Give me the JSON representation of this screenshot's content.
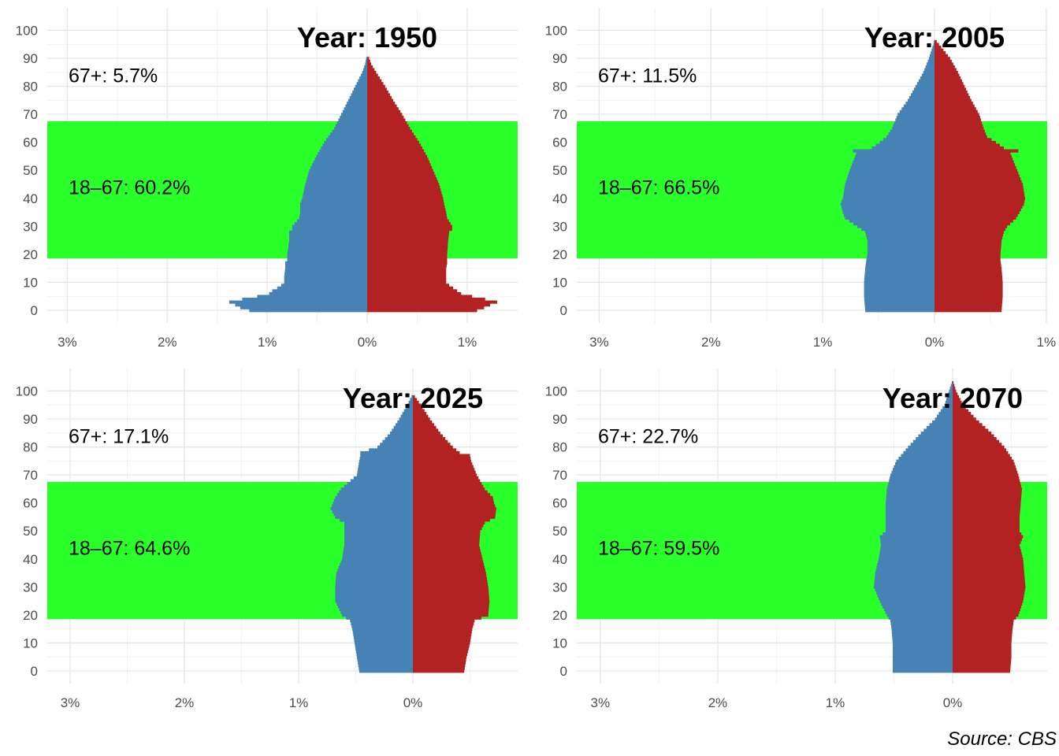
{
  "chart_data": [
    {
      "type": "bar",
      "title": "Year: 1950",
      "subtitle": "",
      "xlabel": "",
      "ylabel": "",
      "y_axis": {
        "ticks": [
          0,
          10,
          20,
          30,
          40,
          50,
          60,
          70,
          80,
          90,
          100
        ],
        "range": [
          -4.5,
          108
        ]
      },
      "x_axis": {
        "left_ticks": [
          3,
          2,
          1,
          0
        ],
        "right_ticks": [
          1
        ],
        "tick_labels": [
          "3%",
          "2%",
          "1%",
          "0%",
          "1%"
        ],
        "range_left": 3.2,
        "range_right": 1.5
      },
      "grid": true,
      "band": {
        "from": 18,
        "to": 67,
        "color": "#22ff22"
      },
      "annotations": [
        {
          "text": "67+: 5.7%",
          "age": 84
        },
        {
          "text": "18–67: 60.2%",
          "age": 44
        }
      ],
      "series": [
        {
          "color": "#4682b4",
          "side": "left",
          "ages": [
            0,
            1,
            2,
            3,
            4,
            5,
            6,
            7,
            8,
            9,
            10,
            12,
            15,
            17,
            18,
            20,
            25,
            28,
            29,
            30,
            33,
            35,
            38,
            40,
            45,
            50,
            55,
            60,
            65,
            70,
            75,
            80,
            85,
            88,
            90,
            91
          ],
          "values": [
            1.18,
            1.27,
            1.32,
            1.38,
            1.25,
            1.1,
            0.98,
            0.95,
            0.9,
            0.86,
            0.83,
            0.83,
            0.82,
            0.82,
            0.8,
            0.8,
            0.78,
            0.78,
            0.75,
            0.75,
            0.68,
            0.67,
            0.67,
            0.65,
            0.62,
            0.58,
            0.51,
            0.43,
            0.33,
            0.26,
            0.19,
            0.12,
            0.05,
            0.02,
            0.01,
            0.0
          ]
        },
        {
          "color": "#b22222",
          "side": "right",
          "ages": [
            0,
            1,
            2,
            3,
            4,
            5,
            6,
            7,
            8,
            9,
            10,
            12,
            15,
            17,
            18,
            20,
            25,
            28,
            29,
            30,
            33,
            35,
            38,
            40,
            45,
            50,
            55,
            60,
            65,
            70,
            75,
            80,
            85,
            88,
            90,
            91
          ],
          "values": [
            1.1,
            1.17,
            1.23,
            1.3,
            1.18,
            1.05,
            0.94,
            0.9,
            0.86,
            0.82,
            0.79,
            0.79,
            0.79,
            0.8,
            0.8,
            0.8,
            0.81,
            0.82,
            0.85,
            0.85,
            0.8,
            0.79,
            0.77,
            0.76,
            0.72,
            0.66,
            0.6,
            0.52,
            0.43,
            0.35,
            0.26,
            0.18,
            0.09,
            0.04,
            0.02,
            0.0
          ]
        }
      ]
    },
    {
      "type": "bar",
      "title": "Year: 2005",
      "subtitle": "",
      "xlabel": "",
      "ylabel": "",
      "y_axis": {
        "ticks": [
          0,
          10,
          20,
          30,
          40,
          50,
          60,
          70,
          80,
          90,
          100
        ],
        "range": [
          -4.5,
          108
        ]
      },
      "x_axis": {
        "left_ticks": [
          3,
          2,
          1,
          0
        ],
        "right_ticks": [
          1
        ],
        "tick_labels": [
          "3%",
          "2%",
          "1%",
          "0%",
          "1%"
        ],
        "range_left": 3.2,
        "range_right": 1.0
      },
      "grid": true,
      "band": {
        "from": 18,
        "to": 67,
        "color": "#22ff22"
      },
      "annotations": [
        {
          "text": "67+: 11.5%",
          "age": 84
        },
        {
          "text": "18–67: 66.5%",
          "age": 44
        }
      ],
      "series": [
        {
          "color": "#4682b4",
          "side": "left",
          "ages": [
            0,
            5,
            10,
            15,
            18,
            20,
            25,
            28,
            30,
            33,
            35,
            38,
            40,
            45,
            50,
            54,
            56,
            57,
            58,
            60,
            62,
            65,
            70,
            75,
            80,
            85,
            90,
            95,
            97
          ],
          "values": [
            0.62,
            0.63,
            0.63,
            0.62,
            0.61,
            0.6,
            0.6,
            0.62,
            0.69,
            0.8,
            0.82,
            0.84,
            0.82,
            0.8,
            0.76,
            0.72,
            0.7,
            0.73,
            0.56,
            0.49,
            0.43,
            0.38,
            0.33,
            0.24,
            0.17,
            0.1,
            0.05,
            0.01,
            0.0
          ]
        },
        {
          "color": "#b22222",
          "side": "right",
          "ages": [
            0,
            5,
            10,
            15,
            18,
            20,
            25,
            28,
            30,
            33,
            35,
            38,
            40,
            45,
            50,
            54,
            56,
            57,
            58,
            60,
            62,
            65,
            70,
            75,
            80,
            85,
            90,
            95,
            97
          ],
          "values": [
            0.6,
            0.61,
            0.61,
            0.6,
            0.59,
            0.59,
            0.6,
            0.62,
            0.65,
            0.73,
            0.76,
            0.8,
            0.81,
            0.79,
            0.74,
            0.7,
            0.68,
            0.75,
            0.62,
            0.55,
            0.47,
            0.44,
            0.4,
            0.33,
            0.27,
            0.21,
            0.14,
            0.04,
            0.0
          ]
        }
      ]
    },
    {
      "type": "bar",
      "title": "Year: 2025",
      "subtitle": "",
      "xlabel": "",
      "ylabel": "",
      "y_axis": {
        "ticks": [
          0,
          10,
          20,
          30,
          40,
          50,
          60,
          70,
          80,
          90,
          100
        ],
        "range": [
          -4.5,
          108
        ]
      },
      "x_axis": {
        "left_ticks": [
          3,
          2,
          1,
          0
        ],
        "right_ticks": [],
        "tick_labels": [
          "3%",
          "2%",
          "1%",
          "0%"
        ],
        "range_left": 3.2,
        "range_right": 0.92
      },
      "grid": true,
      "band": {
        "from": 18,
        "to": 67,
        "color": "#22ff22"
      },
      "annotations": [
        {
          "text": "67+: 17.1%",
          "age": 84
        },
        {
          "text": "18–67: 64.6%",
          "age": 44
        }
      ],
      "series": [
        {
          "color": "#4682b4",
          "side": "left",
          "ages": [
            0,
            5,
            10,
            15,
            18,
            20,
            25,
            30,
            35,
            40,
            45,
            50,
            53,
            55,
            58,
            60,
            62,
            65,
            70,
            75,
            77,
            78,
            80,
            85,
            90,
            95,
            99
          ],
          "values": [
            0.47,
            0.49,
            0.51,
            0.53,
            0.55,
            0.62,
            0.68,
            0.68,
            0.67,
            0.62,
            0.6,
            0.6,
            0.6,
            0.68,
            0.72,
            0.7,
            0.68,
            0.63,
            0.49,
            0.47,
            0.46,
            0.46,
            0.31,
            0.2,
            0.12,
            0.05,
            0.0
          ]
        },
        {
          "color": "#b22222",
          "side": "right",
          "ages": [
            0,
            5,
            10,
            15,
            18,
            20,
            25,
            30,
            35,
            40,
            45,
            50,
            53,
            55,
            58,
            60,
            62,
            65,
            70,
            75,
            77,
            78,
            80,
            85,
            90,
            95,
            99
          ],
          "values": [
            0.45,
            0.47,
            0.5,
            0.52,
            0.54,
            0.66,
            0.67,
            0.66,
            0.64,
            0.61,
            0.58,
            0.59,
            0.63,
            0.72,
            0.73,
            0.71,
            0.7,
            0.63,
            0.56,
            0.51,
            0.5,
            0.41,
            0.35,
            0.24,
            0.15,
            0.07,
            0.0
          ]
        }
      ]
    },
    {
      "type": "bar",
      "title": "Year: 2070",
      "subtitle": "",
      "xlabel": "",
      "ylabel": "",
      "y_axis": {
        "ticks": [
          0,
          10,
          20,
          30,
          40,
          50,
          60,
          70,
          80,
          90,
          100
        ],
        "range": [
          -4.5,
          108
        ]
      },
      "x_axis": {
        "left_ticks": [
          3,
          2,
          1,
          0
        ],
        "right_ticks": [],
        "tick_labels": [
          "3%",
          "2%",
          "1%",
          "0%"
        ],
        "range_left": 3.2,
        "range_right": 0.8
      },
      "grid": true,
      "band": {
        "from": 18,
        "to": 67,
        "color": "#22ff22"
      },
      "annotations": [
        {
          "text": "67+: 22.7%",
          "age": 84
        },
        {
          "text": "18–67: 59.5%",
          "age": 44
        }
      ],
      "series": [
        {
          "color": "#4682b4",
          "side": "left",
          "ages": [
            0,
            5,
            10,
            15,
            18,
            20,
            25,
            30,
            35,
            40,
            45,
            48,
            50,
            55,
            60,
            65,
            70,
            75,
            80,
            85,
            90,
            95,
            100,
            104
          ],
          "values": [
            0.51,
            0.51,
            0.51,
            0.52,
            0.53,
            0.56,
            0.62,
            0.67,
            0.66,
            0.63,
            0.61,
            0.62,
            0.57,
            0.57,
            0.57,
            0.56,
            0.53,
            0.48,
            0.38,
            0.27,
            0.15,
            0.07,
            0.03,
            0.0
          ]
        },
        {
          "color": "#b22222",
          "side": "right",
          "ages": [
            0,
            5,
            10,
            15,
            18,
            20,
            25,
            30,
            35,
            40,
            45,
            48,
            50,
            55,
            60,
            65,
            70,
            75,
            80,
            85,
            90,
            95,
            100,
            104
          ],
          "values": [
            0.49,
            0.5,
            0.5,
            0.51,
            0.52,
            0.56,
            0.6,
            0.62,
            0.61,
            0.6,
            0.57,
            0.6,
            0.57,
            0.57,
            0.58,
            0.59,
            0.56,
            0.52,
            0.44,
            0.33,
            0.2,
            0.09,
            0.03,
            0.0
          ]
        }
      ]
    }
  ],
  "caption": "Source: CBS"
}
